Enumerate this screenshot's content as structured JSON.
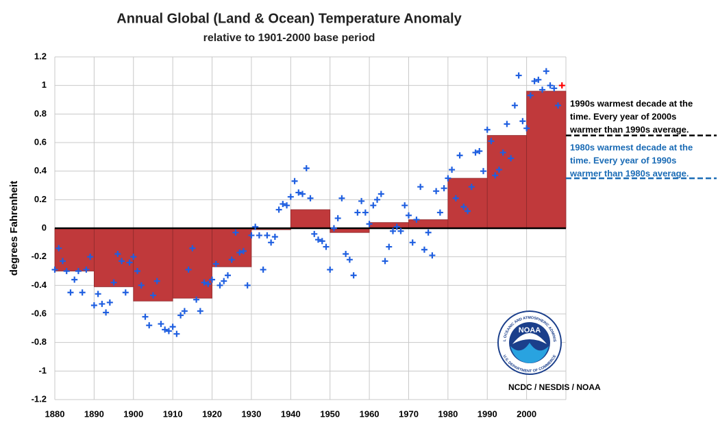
{
  "chart_data": {
    "type": "combo",
    "title": "Annual Global (Land & Ocean) Temperature Anomaly",
    "subtitle": "relative to 1901-2000 base period",
    "y_label": "degrees Fahrenheit",
    "xlim": [
      1880,
      2010
    ],
    "xticks": [
      1880,
      1890,
      1900,
      1910,
      1920,
      1930,
      1940,
      1950,
      1960,
      1970,
      1980,
      1990,
      2000
    ],
    "ylim": [
      -1.2,
      1.2
    ],
    "yticks": [
      1.2,
      1,
      0.8,
      0.6,
      0.4,
      0.2,
      0,
      -0.2,
      -0.4,
      -0.6,
      -0.8,
      -1,
      -1.2
    ],
    "grid": true,
    "decades": {
      "bins": [
        1880,
        1890,
        1900,
        1910,
        1920,
        1930,
        1940,
        1950,
        1960,
        1970,
        1980,
        1990,
        2000,
        2010
      ],
      "values": [
        -0.3,
        -0.41,
        -0.51,
        -0.49,
        -0.27,
        -0.01,
        0.13,
        -0.03,
        0.04,
        0.06,
        0.35,
        0.65,
        0.96
      ],
      "color": "#c0393b"
    },
    "annual": {
      "x": [
        1880,
        1881,
        1882,
        1883,
        1884,
        1885,
        1886,
        1887,
        1888,
        1889,
        1890,
        1891,
        1892,
        1893,
        1894,
        1895,
        1896,
        1897,
        1898,
        1899,
        1900,
        1901,
        1902,
        1903,
        1904,
        1905,
        1906,
        1907,
        1908,
        1909,
        1910,
        1911,
        1912,
        1913,
        1914,
        1915,
        1916,
        1917,
        1918,
        1919,
        1920,
        1921,
        1922,
        1923,
        1924,
        1925,
        1926,
        1927,
        1928,
        1929,
        1930,
        1931,
        1932,
        1933,
        1934,
        1935,
        1936,
        1937,
        1938,
        1939,
        1940,
        1941,
        1942,
        1943,
        1944,
        1945,
        1946,
        1947,
        1948,
        1949,
        1950,
        1951,
        1952,
        1953,
        1954,
        1955,
        1956,
        1957,
        1958,
        1959,
        1960,
        1961,
        1962,
        1963,
        1964,
        1965,
        1966,
        1967,
        1968,
        1969,
        1970,
        1971,
        1972,
        1973,
        1974,
        1975,
        1976,
        1977,
        1978,
        1979,
        1980,
        1981,
        1982,
        1983,
        1984,
        1985,
        1986,
        1987,
        1988,
        1989,
        1990,
        1991,
        1992,
        1993,
        1994,
        1995,
        1996,
        1997,
        1998,
        1999,
        2000,
        2001,
        2002,
        2003,
        2004,
        2005,
        2006,
        2007,
        2008,
        2009
      ],
      "values": [
        -0.29,
        -0.14,
        -0.23,
        -0.3,
        -0.45,
        -0.36,
        -0.3,
        -0.45,
        -0.29,
        -0.2,
        -0.54,
        -0.46,
        -0.53,
        -0.59,
        -0.52,
        -0.38,
        -0.18,
        -0.23,
        -0.45,
        -0.24,
        -0.2,
        -0.3,
        -0.4,
        -0.62,
        -0.68,
        -0.47,
        -0.37,
        -0.67,
        -0.71,
        -0.72,
        -0.69,
        -0.74,
        -0.61,
        -0.58,
        -0.29,
        -0.14,
        -0.5,
        -0.58,
        -0.38,
        -0.39,
        -0.36,
        -0.25,
        -0.4,
        -0.37,
        -0.33,
        -0.22,
        -0.03,
        -0.17,
        -0.16,
        -0.4,
        -0.05,
        0.01,
        -0.05,
        -0.29,
        -0.05,
        -0.1,
        -0.06,
        0.13,
        0.17,
        0.16,
        0.22,
        0.33,
        0.25,
        0.24,
        0.42,
        0.21,
        -0.04,
        -0.08,
        -0.09,
        -0.13,
        -0.29,
        0.0,
        0.07,
        0.21,
        -0.18,
        -0.22,
        -0.33,
        0.11,
        0.19,
        0.11,
        0.03,
        0.16,
        0.2,
        0.24,
        -0.23,
        -0.13,
        -0.02,
        0.01,
        -0.02,
        0.16,
        0.09,
        -0.1,
        0.06,
        0.29,
        -0.15,
        -0.03,
        -0.19,
        0.26,
        0.11,
        0.28,
        0.35,
        0.41,
        0.21,
        0.51,
        0.15,
        0.12,
        0.29,
        0.53,
        0.54,
        0.4,
        0.69,
        0.61,
        0.37,
        0.41,
        0.53,
        0.73,
        0.49,
        0.86,
        1.07,
        0.75,
        0.7,
        0.93,
        1.03,
        1.04,
        0.97,
        1.1,
        1.0,
        0.98,
        0.86,
        1.0
      ],
      "color": "#1f5fe0",
      "last_color": "#ff0000"
    },
    "annotations": [
      {
        "lines": [
          "1990s warmest decade at the",
          "time. Every year of 2000s",
          "warmer than 1990s average."
        ],
        "color": "#000000"
      },
      {
        "lines": [
          "1980s warmest decade at the",
          "time. Every year of 1990s",
          "warmer than 1980s average."
        ],
        "color": "#1a6bb5"
      }
    ],
    "credit": "NCDC / NESDIS / NOAA",
    "logo": {
      "name": "NOAA",
      "top": "NATIONAL OCEANIC AND ATMOSPHERIC ADMINISTRATION",
      "bottom": "U.S. DEPARTMENT OF COMMERCE"
    }
  }
}
